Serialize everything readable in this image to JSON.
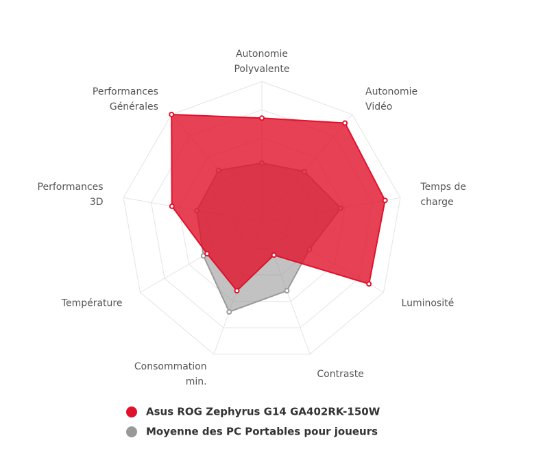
{
  "chart_data": {
    "type": "radar",
    "categories": [
      "Autonomie\nPolyvalente",
      "Autonomie\nVidéo",
      "Temps de\ncharge",
      "Luminosité",
      "Contraste",
      "Consommation\nmin.",
      "Température",
      "Performances\n3D",
      "Performances\nGénérales"
    ],
    "series": [
      {
        "name": "Asus ROG Zephyrus G14 GA402RK-150W",
        "color": "#e0112b",
        "values": [
          74,
          92,
          89,
          88,
          25,
          52,
          45,
          65,
          100
        ]
      },
      {
        "name": "Moyenne des PC Portables pour joueurs",
        "color": "#999999",
        "values": [
          42,
          47,
          57,
          39,
          52,
          68,
          48,
          47,
          48
        ]
      }
    ],
    "ylim": [
      0,
      100
    ],
    "yticks": [
      20,
      40,
      60,
      80,
      100
    ],
    "grid": true
  }
}
